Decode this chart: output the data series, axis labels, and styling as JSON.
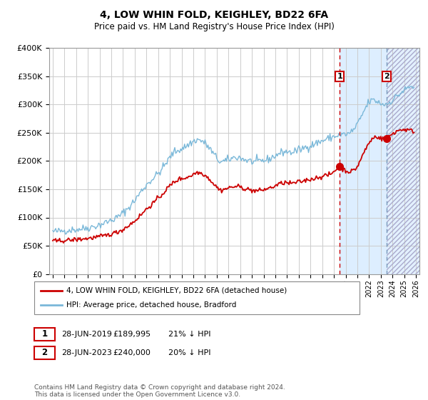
{
  "title": "4, LOW WHIN FOLD, KEIGHLEY, BD22 6FA",
  "subtitle": "Price paid vs. HM Land Registry's House Price Index (HPI)",
  "legend_line1": "4, LOW WHIN FOLD, KEIGHLEY, BD22 6FA (detached house)",
  "legend_line2": "HPI: Average price, detached house, Bradford",
  "marker1_date": "28-JUN-2019",
  "marker1_price": 189995,
  "marker1_label": "21% ↓ HPI",
  "marker2_date": "28-JUN-2023",
  "marker2_price": 240000,
  "marker2_label": "20% ↓ HPI",
  "marker1_year": 2019.5,
  "marker2_year": 2023.5,
  "xmin": 1995,
  "xmax": 2026,
  "ymin": 0,
  "ymax": 400000,
  "hpi_color": "#7ab8d9",
  "price_color": "#cc0000",
  "marker_color": "#cc0000",
  "shade_color": "#ddeeff",
  "dashed_line1_color": "#cc0000",
  "dashed_line2_color": "#7799bb",
  "footer": "Contains HM Land Registry data © Crown copyright and database right 2024.\nThis data is licensed under the Open Government Licence v3.0.",
  "hatch_region_start": 2023.5,
  "hatch_region_end": 2026.5
}
